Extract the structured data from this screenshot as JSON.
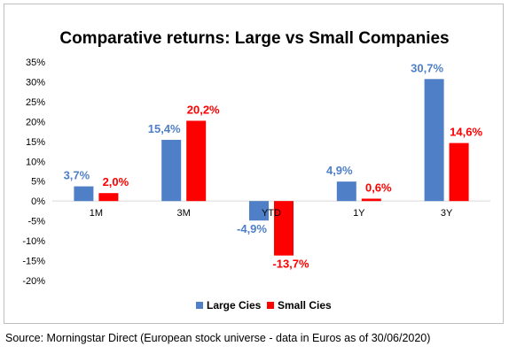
{
  "chart_data": {
    "type": "bar",
    "title": "Comparative returns: Large vs Small Companies",
    "categories": [
      "1M",
      "3M",
      "YTD",
      "1Y",
      "3Y"
    ],
    "series": [
      {
        "name": "Large Cies",
        "values": [
          3.7,
          15.4,
          -4.9,
          4.9,
          30.7
        ],
        "labels": [
          "3,7%",
          "15,4%",
          "-4,9%",
          "4,9%",
          "30,7%"
        ],
        "color": "#4f7fc6"
      },
      {
        "name": "Small Cies",
        "values": [
          2.0,
          20.2,
          -13.7,
          0.6,
          14.6
        ],
        "labels": [
          "2,0%",
          "20,2%",
          "-13,7%",
          "0,6%",
          "14,6%"
        ],
        "color": "#ff0000"
      }
    ],
    "ylim": [
      -20,
      35
    ],
    "yticks": [
      35,
      30,
      25,
      20,
      15,
      10,
      5,
      0,
      -5,
      -10,
      -15,
      -20
    ],
    "ytick_labels": [
      "35%",
      "30%",
      "25%",
      "20%",
      "15%",
      "10%",
      "5%",
      "0%",
      "-5%",
      "-10%",
      "-15%",
      "-20%"
    ],
    "grid": false,
    "legend_position": "bottom",
    "xlabel": "",
    "ylabel": ""
  },
  "source_note": "Source: Morningstar Direct (European stock universe - data in Euros as of 30/06/2020)"
}
